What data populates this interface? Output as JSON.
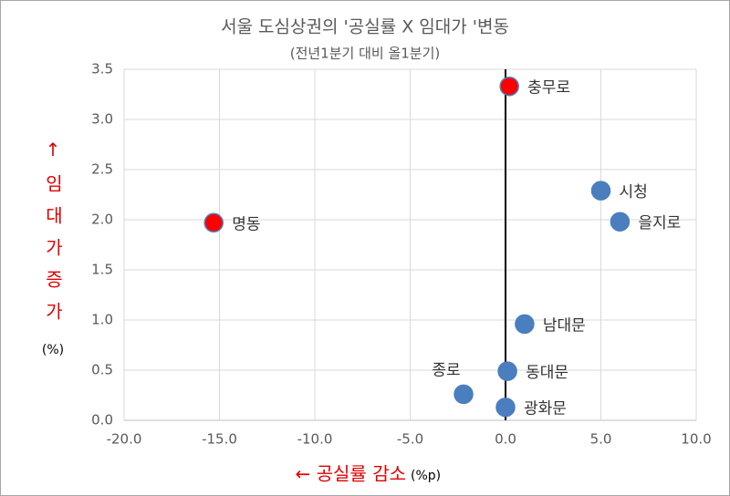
{
  "chart_data": {
    "type": "scatter",
    "title": "서울 도심상권의 '공실률 X 임대가 '변동",
    "subtitle": "(전년1분기 대비 올1분기)",
    "y_label": "↑임대가증가",
    "y_unit": "(%)",
    "x_label": "← 공실률 감소",
    "x_unit": "(%p)",
    "labels": [
      "충무로",
      "명동",
      "시청",
      "을지로",
      "남대문",
      "동대문",
      "종로",
      "광화문"
    ],
    "x": [
      0.2,
      -15.3,
      5.0,
      6.0,
      1.0,
      0.1,
      -2.2,
      0.0
    ],
    "values": [
      3.33,
      1.97,
      2.29,
      1.98,
      0.96,
      0.49,
      0.26,
      0.13
    ],
    "colors": [
      "#ff0000",
      "#ff0000",
      "#4a7ebf",
      "#4a7ebf",
      "#4a7ebf",
      "#4a7ebf",
      "#4a7ebf",
      "#4a7ebf"
    ],
    "xlim": [
      -20,
      10
    ],
    "xticks": [
      {
        "value": -20,
        "label": "-20.0"
      },
      {
        "value": -15,
        "label": "-15.0"
      },
      {
        "value": -10,
        "label": "-10.0"
      },
      {
        "value": -5,
        "label": "-5.0"
      },
      {
        "value": 0,
        "label": "0.0"
      },
      {
        "value": 5,
        "label": "5.0"
      },
      {
        "value": 10,
        "label": "10.0"
      }
    ],
    "ylim": [
      0,
      3.5
    ],
    "yticks": [
      {
        "value": 0,
        "label": "0.0"
      },
      0.5,
      {
        "value": 1,
        "label": "1.0"
      },
      1.5,
      {
        "value": 2,
        "label": "2.0"
      },
      2.5,
      {
        "value": 3,
        "label": "3.0"
      },
      3.5
    ],
    "grid": true
  }
}
